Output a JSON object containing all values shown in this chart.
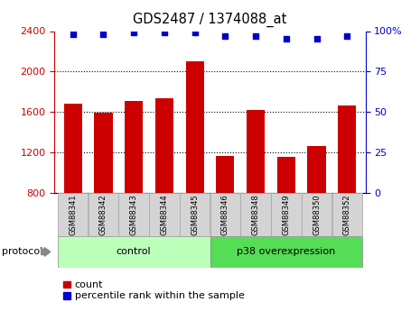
{
  "title": "GDS2487 / 1374088_at",
  "samples": [
    "GSM88341",
    "GSM88342",
    "GSM88343",
    "GSM88344",
    "GSM88345",
    "GSM88346",
    "GSM88348",
    "GSM88349",
    "GSM88350",
    "GSM88352"
  ],
  "counts": [
    1680,
    1595,
    1710,
    1740,
    2100,
    1165,
    1620,
    1155,
    1260,
    1660
  ],
  "percentile_ranks": [
    98,
    98,
    99,
    99,
    99,
    97,
    97,
    95,
    95,
    97
  ],
  "groups": [
    {
      "label": "control",
      "start": 0,
      "end": 5,
      "color": "#bbffbb"
    },
    {
      "label": "p38 overexpression",
      "start": 5,
      "end": 10,
      "color": "#55dd55"
    }
  ],
  "ylim_left": [
    800,
    2400
  ],
  "ylim_right": [
    0,
    100
  ],
  "left_ticks": [
    800,
    1200,
    1600,
    2000,
    2400
  ],
  "right_ticks": [
    0,
    25,
    50,
    75,
    100
  ],
  "bar_color": "#cc0000",
  "dot_color": "#0000cc",
  "left_tick_color": "#cc0000",
  "right_tick_color": "#0000cc",
  "legend_count_color": "#cc0000",
  "legend_pct_color": "#0000cc",
  "label_count": "count",
  "label_pct": "percentile rank within the sample",
  "protocol_label": "protocol",
  "tick_box_color": "#d4d4d4",
  "tick_box_linecolor": "#aaaaaa"
}
